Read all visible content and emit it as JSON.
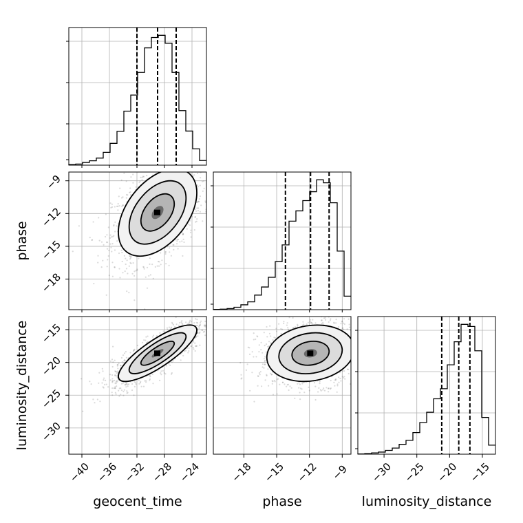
{
  "chart_data": {
    "type": "corner",
    "parameters": [
      "geocent_time",
      "phase",
      "luminosity_distance"
    ],
    "axis_labels": {
      "geocent_time": "geocent_time",
      "phase": "phase",
      "luminosity_distance": "luminosity_distance"
    },
    "ranges": {
      "geocent_time": [
        -41.9,
        -21.9
      ],
      "phase": [
        -20.8,
        -8.2
      ],
      "luminosity_distance": [
        -34.0,
        -13.0
      ]
    },
    "ticks": {
      "geocent_time": [
        -40,
        -36,
        -32,
        -28,
        -24
      ],
      "phase": [
        -18,
        -15,
        -12,
        -9
      ],
      "luminosity_distance": [
        -30,
        -25,
        -20,
        -15
      ]
    },
    "grid": true,
    "histograms": {
      "geocent_time": {
        "bin_edges_start": -41.9,
        "bin_width": 1.0,
        "counts": [
          0.2,
          0.4,
          1.0,
          1.6,
          2.6,
          4.7,
          8.0,
          12.4,
          19.8,
          25.7,
          34.0,
          43.0,
          46.8,
          47.6,
          44.7,
          34.0,
          20.0,
          12.5,
          6.0,
          1.7
        ]
      },
      "phase": {
        "bin_edges_start": -20.8,
        "bin_width": 0.63,
        "counts": [
          0.1,
          0.2,
          0.4,
          0.9,
          1.8,
          2.9,
          5.4,
          8.4,
          12.0,
          17.8,
          24.0,
          32.8,
          36.6,
          40.4,
          43.7,
          48.1,
          47.0,
          39.6,
          21.7,
          5.0
        ]
      },
      "luminosity_distance": {
        "bin_edges_start": -34.0,
        "bin_width": 1.05,
        "counts": [
          0.1,
          0.3,
          0.6,
          1.0,
          1.8,
          2.9,
          4.7,
          6.6,
          10.3,
          15.1,
          20.0,
          26.4,
          31.2,
          42.6,
          53.6,
          61.9,
          60.9,
          49.3,
          17.5,
          4.3
        ]
      }
    },
    "quantiles": {
      "geocent_time": [
        -32.0,
        -29.0,
        -26.3
      ],
      "phase": [
        -14.2,
        -11.9,
        -10.2
      ],
      "luminosity_distance": [
        -21.2,
        -18.6,
        -16.9
      ]
    },
    "correlations": {
      "geocent_time|phase": 0.45,
      "geocent_time|luminosity_distance": 0.82,
      "phase|luminosity_distance": 0.15
    }
  }
}
